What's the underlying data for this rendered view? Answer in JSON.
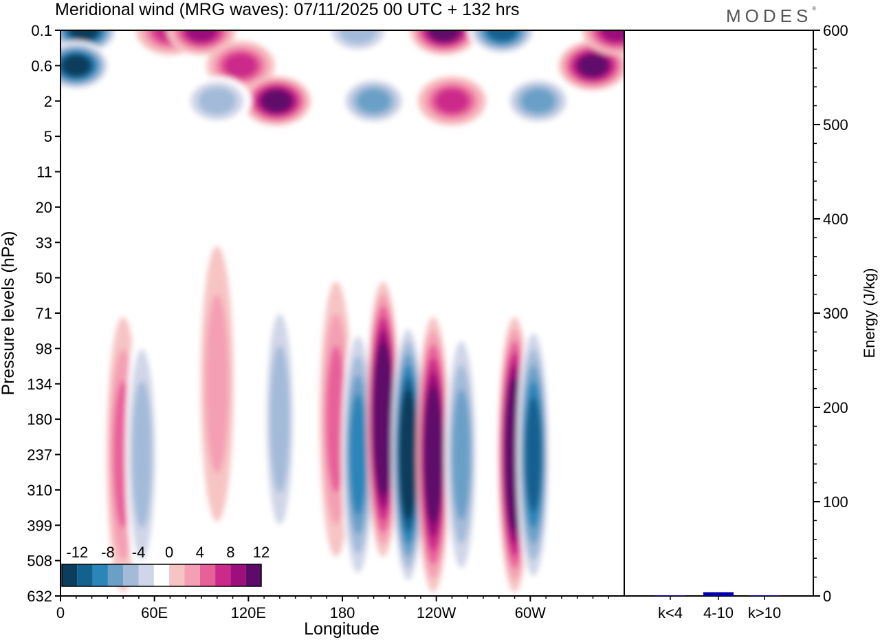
{
  "title": "Meridional wind (MRG waves):  07/11/2025  00 UTC  + 132 hrs",
  "logo": "MODES",
  "logo_mark": "®",
  "chart_data": [
    {
      "type": "heatmap",
      "name": "meridional-wind-contour",
      "xlabel": "Longitude",
      "ylabel": "Pressure levels (hPa)",
      "x_ticks": [
        "0",
        "60E",
        "120E",
        "180",
        "120W",
        "60W"
      ],
      "x_tick_degrees": [
        0,
        60,
        120,
        180,
        240,
        300
      ],
      "x_range_degrees": [
        0,
        360
      ],
      "y_ticks": [
        "0.1",
        "0.6",
        "2",
        "5",
        "11",
        "20",
        "33",
        "50",
        "71",
        "98",
        "134",
        "180",
        "237",
        "310",
        "399",
        "508",
        "632"
      ],
      "colorbar": {
        "labels": [
          "-12",
          "-8",
          "-4",
          "0",
          "4",
          "8",
          "12"
        ],
        "levels": [
          -14,
          -12,
          -10,
          -8,
          -6,
          -4,
          -2,
          2,
          4,
          6,
          8,
          10,
          12,
          14
        ],
        "colors": [
          "#0b3d5c",
          "#13618f",
          "#2a85b8",
          "#6aa0c8",
          "#a3bbd9",
          "#d0d6e8",
          "#ffffff",
          "#f7c4c4",
          "#f49fb4",
          "#e8609a",
          "#cc2a8a",
          "#9c0f7c",
          "#5e0a6a"
        ]
      },
      "low_level_anomalies": [
        {
          "lon": 40,
          "level": 237,
          "value": 5
        },
        {
          "lon": 52,
          "level": 237,
          "value": -6
        },
        {
          "lon": 100,
          "level": 134,
          "value": 4
        },
        {
          "lon": 140,
          "level": 180,
          "value": -6
        },
        {
          "lon": 176,
          "level": 180,
          "value": 6
        },
        {
          "lon": 190,
          "level": 237,
          "value": -10
        },
        {
          "lon": 206,
          "level": 180,
          "value": 15
        },
        {
          "lon": 222,
          "level": 237,
          "value": -15
        },
        {
          "lon": 238,
          "level": 237,
          "value": 14
        },
        {
          "lon": 256,
          "level": 237,
          "value": -8
        },
        {
          "lon": 290,
          "level": 237,
          "value": 15
        },
        {
          "lon": 302,
          "level": 237,
          "value": -12
        }
      ],
      "upper_level_anomalies": [
        {
          "lon": 15,
          "level": 0.1,
          "value": -14
        },
        {
          "lon": 10,
          "level": 0.6,
          "value": -14
        },
        {
          "lon": 70,
          "level": 0.1,
          "value": 8
        },
        {
          "lon": 90,
          "level": 0.1,
          "value": 10
        },
        {
          "lon": 115,
          "level": 0.6,
          "value": 8
        },
        {
          "lon": 138,
          "level": 2,
          "value": 12
        },
        {
          "lon": 100,
          "level": 2,
          "value": -6
        },
        {
          "lon": 190,
          "level": 0.1,
          "value": -6
        },
        {
          "lon": 200,
          "level": 2,
          "value": -8
        },
        {
          "lon": 245,
          "level": 0.1,
          "value": 12
        },
        {
          "lon": 250,
          "level": 2,
          "value": 8
        },
        {
          "lon": 282,
          "level": 0.1,
          "value": -12
        },
        {
          "lon": 305,
          "level": 2,
          "value": -8
        },
        {
          "lon": 340,
          "level": 0.6,
          "value": 12
        },
        {
          "lon": 355,
          "level": 0.1,
          "value": 10
        }
      ]
    },
    {
      "type": "bar",
      "name": "energy-bar-chart",
      "ylabel": "Energy (J/kg)",
      "ylim": [
        0,
        600
      ],
      "y_ticks": [
        "0",
        "100",
        "200",
        "300",
        "400",
        "500",
        "600"
      ],
      "y_tick_values": [
        0,
        100,
        200,
        300,
        400,
        500,
        600
      ],
      "categories": [
        "k<4",
        "4-10",
        "k>10"
      ],
      "values": [
        0,
        4,
        0
      ],
      "bar_color": "#0000aa"
    }
  ]
}
